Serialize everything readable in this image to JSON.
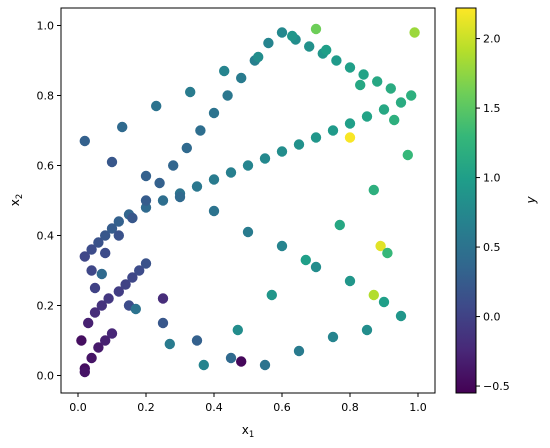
{
  "chart_data": {
    "type": "scatter",
    "title": "",
    "xlabel_base": "x",
    "xlabel_sub": "1",
    "ylabel_base": "x",
    "ylabel_sub": "2",
    "xlim": [
      -0.05,
      1.05
    ],
    "ylim": [
      -0.05,
      1.05
    ],
    "x_ticks": [
      {
        "value": 0.0,
        "label": "0.0"
      },
      {
        "value": 0.2,
        "label": "0.2"
      },
      {
        "value": 0.4,
        "label": "0.4"
      },
      {
        "value": 0.6,
        "label": "0.6"
      },
      {
        "value": 0.8,
        "label": "0.8"
      },
      {
        "value": 1.0,
        "label": "1.0"
      }
    ],
    "y_ticks": [
      {
        "value": 0.0,
        "label": "0.0"
      },
      {
        "value": 0.2,
        "label": "0.2"
      },
      {
        "value": 0.4,
        "label": "0.4"
      },
      {
        "value": 0.6,
        "label": "0.6"
      },
      {
        "value": 0.8,
        "label": "0.8"
      },
      {
        "value": 1.0,
        "label": "1.0"
      }
    ],
    "colorbar": {
      "label": "y",
      "colormap": "viridis",
      "range": [
        -0.55,
        2.22
      ],
      "ticks": [
        {
          "value": -0.5,
          "label": "−0.5"
        },
        {
          "value": 0.0,
          "label": "0.0"
        },
        {
          "value": 0.5,
          "label": "0.5"
        },
        {
          "value": 1.0,
          "label": "1.0"
        },
        {
          "value": 1.5,
          "label": "1.5"
        },
        {
          "value": 2.0,
          "label": "2.0"
        }
      ]
    },
    "grid": false,
    "colors": {
      "viridis_stops": [
        "#440154",
        "#482878",
        "#3e4989",
        "#31688e",
        "#26828e",
        "#1f9e89",
        "#35b779",
        "#6ece58",
        "#b5de2b",
        "#fde725"
      ]
    },
    "series": [
      {
        "x": [
          0.02,
          0.04,
          0.06,
          0.08,
          0.1,
          0.03,
          0.05,
          0.07,
          0.09,
          0.12,
          0.14,
          0.16,
          0.18,
          0.2,
          0.02,
          0.04,
          0.06,
          0.08,
          0.1,
          0.12,
          0.15,
          0.2,
          0.25,
          0.3,
          0.35,
          0.4,
          0.45,
          0.5,
          0.55,
          0.6,
          0.65,
          0.7,
          0.75,
          0.8,
          0.85,
          0.9,
          0.95,
          0.98,
          0.92,
          0.88,
          0.84,
          0.8,
          0.76,
          0.72,
          0.68,
          0.64,
          0.6,
          0.56,
          0.52,
          0.48,
          0.44,
          0.4,
          0.36,
          0.32,
          0.28,
          0.24,
          0.2,
          0.16,
          0.12,
          0.08,
          0.04,
          0.05,
          0.15,
          0.25,
          0.35,
          0.45,
          0.55,
          0.65,
          0.75,
          0.85,
          0.95,
          0.9,
          0.8,
          0.7,
          0.6,
          0.5,
          0.4,
          0.3,
          0.2,
          0.1,
          0.02,
          0.13,
          0.23,
          0.33,
          0.43,
          0.53,
          0.63,
          0.73,
          0.83,
          0.93,
          0.97,
          0.87,
          0.77,
          0.67,
          0.57,
          0.47,
          0.37,
          0.27,
          0.17,
          0.07,
          0.8,
          0.89,
          0.87,
          0.7,
          0.99,
          0.48,
          0.02,
          0.01,
          0.25,
          0.91
        ],
        "y": [
          0.02,
          0.05,
          0.08,
          0.1,
          0.12,
          0.15,
          0.18,
          0.2,
          0.22,
          0.24,
          0.26,
          0.28,
          0.3,
          0.32,
          0.34,
          0.36,
          0.38,
          0.4,
          0.42,
          0.44,
          0.46,
          0.48,
          0.5,
          0.52,
          0.54,
          0.56,
          0.58,
          0.6,
          0.62,
          0.64,
          0.66,
          0.68,
          0.7,
          0.72,
          0.74,
          0.76,
          0.78,
          0.8,
          0.82,
          0.84,
          0.86,
          0.88,
          0.9,
          0.92,
          0.94,
          0.96,
          0.98,
          0.95,
          0.9,
          0.85,
          0.8,
          0.75,
          0.7,
          0.65,
          0.6,
          0.55,
          0.5,
          0.45,
          0.4,
          0.35,
          0.3,
          0.25,
          0.2,
          0.15,
          0.1,
          0.05,
          0.03,
          0.07,
          0.11,
          0.13,
          0.17,
          0.21,
          0.27,
          0.31,
          0.37,
          0.41,
          0.47,
          0.51,
          0.57,
          0.61,
          0.67,
          0.71,
          0.77,
          0.81,
          0.87,
          0.91,
          0.97,
          0.93,
          0.83,
          0.73,
          0.63,
          0.53,
          0.43,
          0.33,
          0.23,
          0.13,
          0.03,
          0.09,
          0.19,
          0.29,
          0.68,
          0.37,
          0.23,
          0.99,
          0.98,
          0.04,
          0.01,
          0.1,
          0.22,
          0.35
        ],
        "color_values": [
          -0.45,
          -0.4,
          -0.35,
          -0.3,
          -0.25,
          -0.3,
          -0.2,
          -0.15,
          -0.1,
          -0.05,
          0.0,
          0.05,
          0.1,
          0.15,
          0.05,
          0.1,
          0.15,
          0.2,
          0.25,
          0.3,
          0.35,
          0.4,
          0.45,
          0.5,
          0.55,
          0.6,
          0.65,
          0.7,
          0.75,
          0.8,
          0.85,
          0.9,
          0.95,
          1.0,
          1.05,
          1.1,
          1.15,
          1.2,
          1.15,
          1.1,
          1.05,
          1.0,
          0.95,
          0.9,
          0.85,
          0.8,
          0.75,
          0.7,
          0.65,
          0.6,
          0.55,
          0.5,
          0.45,
          0.4,
          0.35,
          0.3,
          0.25,
          0.2,
          0.15,
          0.1,
          0.05,
          0.0,
          0.1,
          0.2,
          0.3,
          0.4,
          0.5,
          0.6,
          0.7,
          0.8,
          0.9,
          1.0,
          0.9,
          0.8,
          0.7,
          0.6,
          0.5,
          0.4,
          0.3,
          0.2,
          0.3,
          0.4,
          0.5,
          0.6,
          0.7,
          0.8,
          0.9,
          1.0,
          1.1,
          1.2,
          1.3,
          1.2,
          1.1,
          1.0,
          0.9,
          0.8,
          0.7,
          0.6,
          0.5,
          0.4,
          2.2,
          2.1,
          1.9,
          1.6,
          1.8,
          -0.5,
          -0.4,
          -0.45,
          -0.2,
          1.3
        ]
      }
    ]
  }
}
